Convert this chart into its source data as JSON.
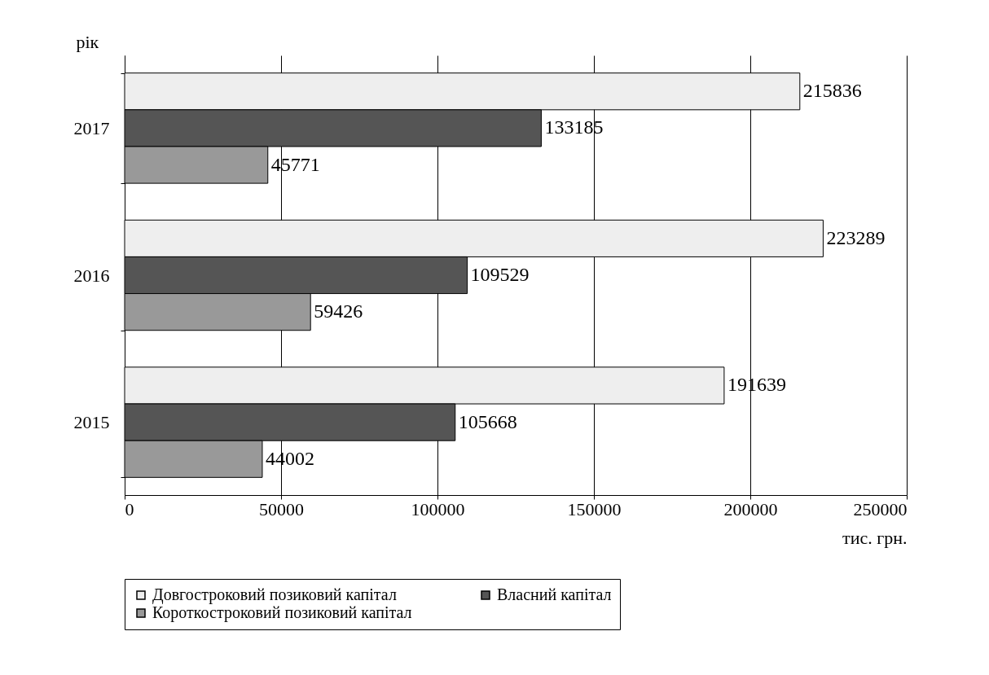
{
  "chart_data": {
    "type": "bar",
    "orientation": "horizontal",
    "xlabel": "тис. грн.",
    "ylabel": "рік",
    "categories": [
      "2017",
      "2016",
      "2015"
    ],
    "series": [
      {
        "name": "Довгостроковий позиковий капітал",
        "color": "#eeeeee",
        "values": [
          215836,
          223289,
          191639
        ]
      },
      {
        "name": "Власний капітал",
        "color": "#555555",
        "values": [
          133185,
          109529,
          105668
        ]
      },
      {
        "name": "Короткостроковий позиковий капітал",
        "color": "#999999",
        "values": [
          45771,
          59426,
          44002
        ]
      }
    ],
    "xlim": [
      0,
      250000
    ],
    "xticks": [
      0,
      50000,
      100000,
      150000,
      200000,
      250000
    ],
    "grid": "x",
    "legend": "bottom",
    "data_labels": true
  }
}
